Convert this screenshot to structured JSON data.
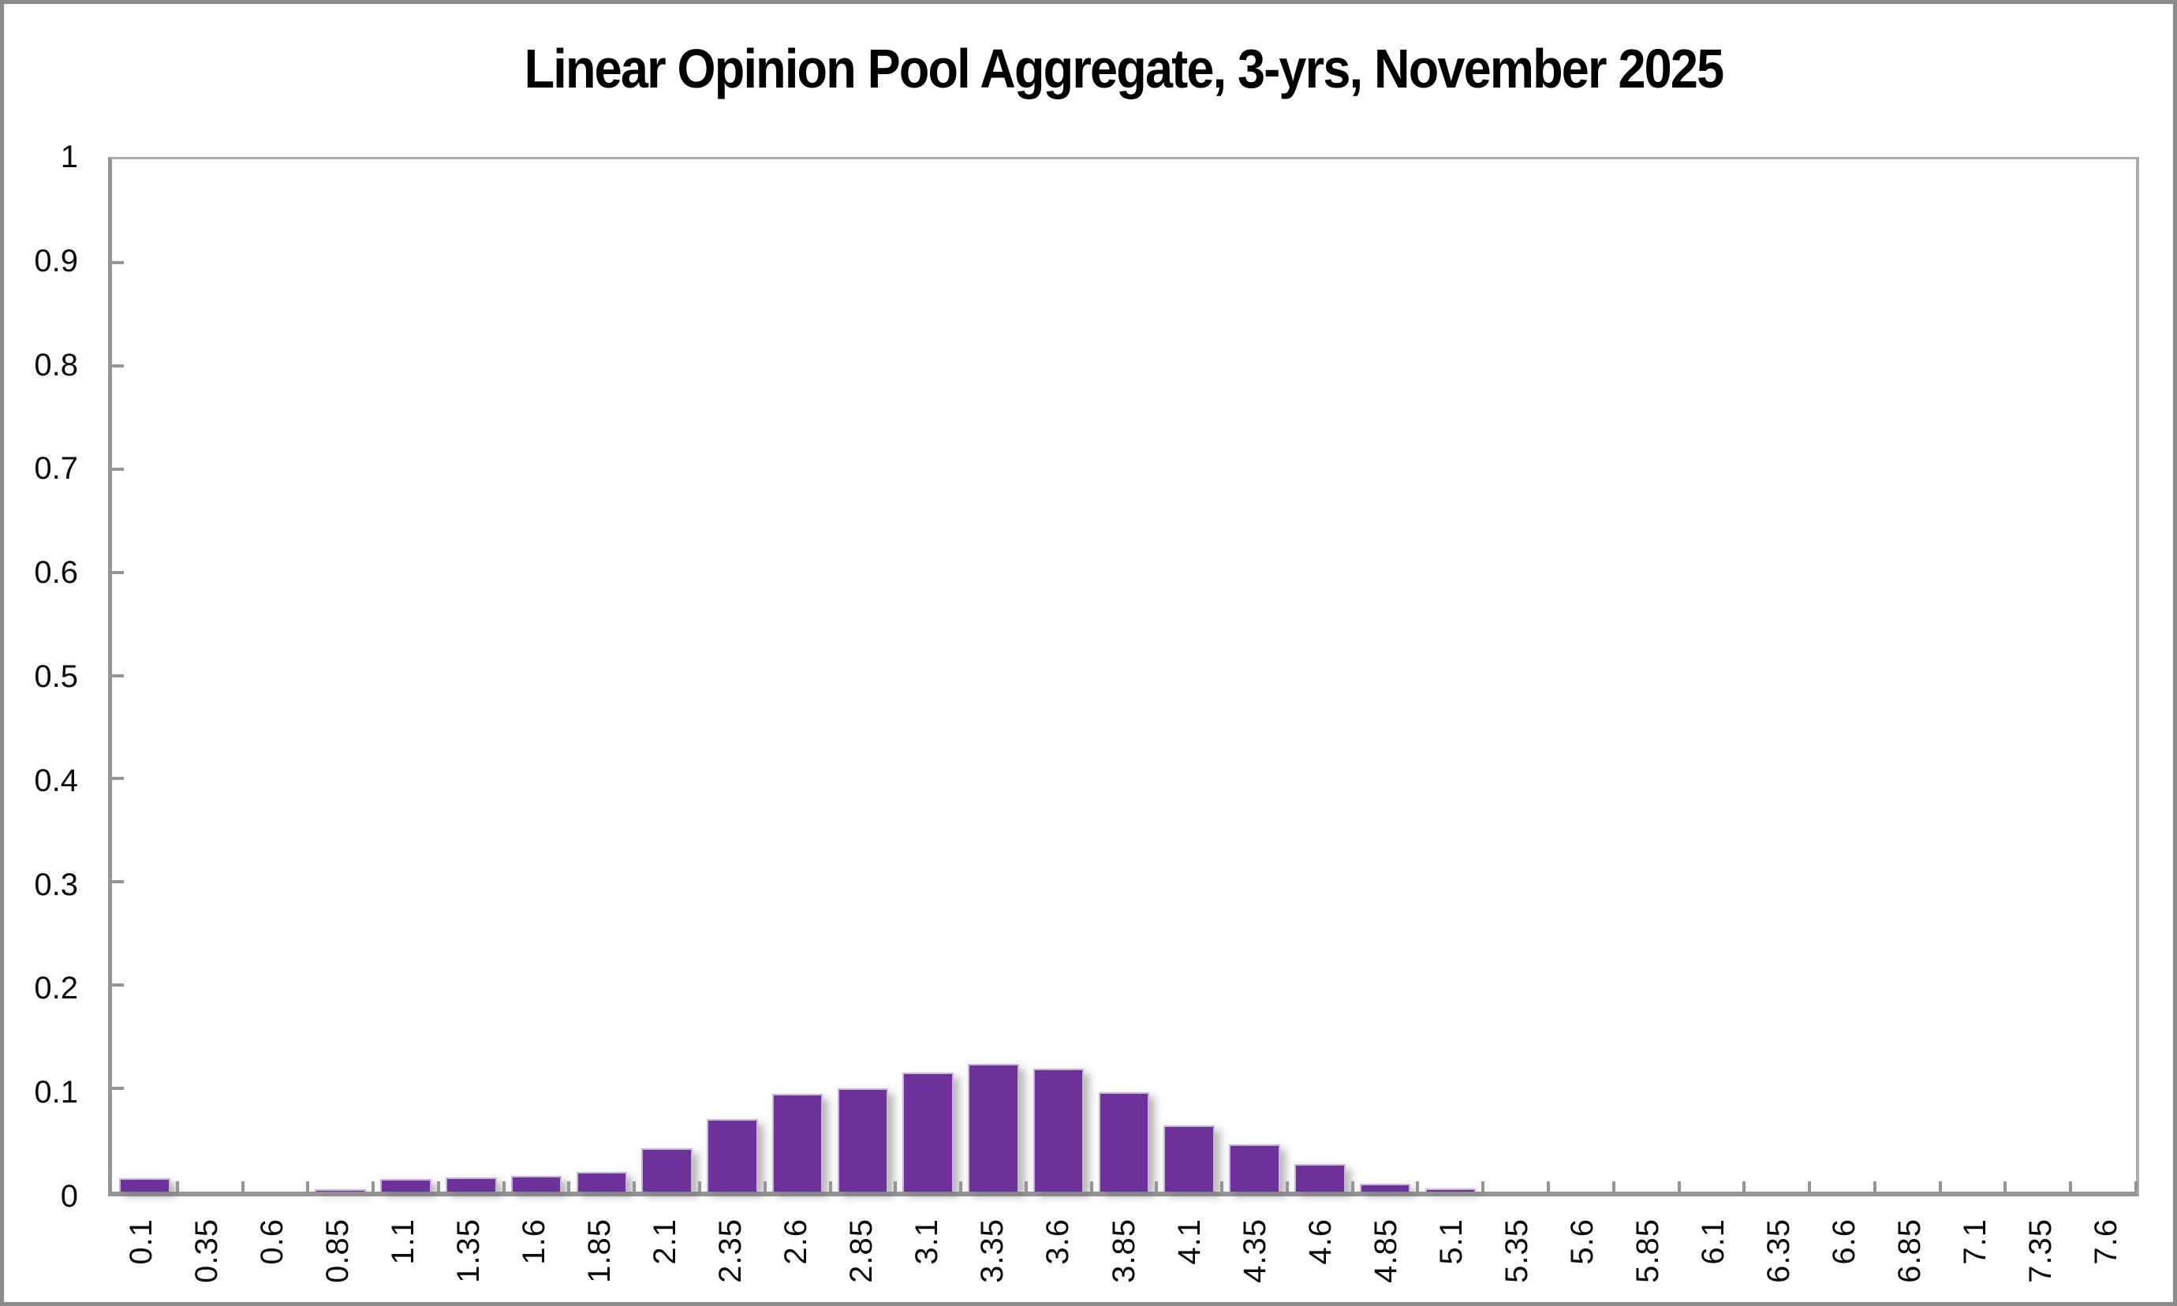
{
  "chart_data": {
    "type": "bar",
    "title": "Linear Opinion Pool Aggregate, 3-yrs, November 2025",
    "categories": [
      "0.1",
      "0.35",
      "0.6",
      "0.85",
      "1.1",
      "1.35",
      "1.6",
      "1.85",
      "2.1",
      "2.35",
      "2.6",
      "2.85",
      "3.1",
      "3.35",
      "3.6",
      "3.85",
      "4.1",
      "4.35",
      "4.6",
      "4.85",
      "5.1",
      "5.35",
      "5.6",
      "5.85",
      "6.1",
      "6.35",
      "6.6",
      "6.85",
      "7.1",
      "7.35",
      "7.6"
    ],
    "values": [
      0.013,
      0,
      0,
      0.002,
      0.012,
      0.014,
      0.015,
      0.019,
      0.042,
      0.07,
      0.095,
      0.1,
      0.115,
      0.124,
      0.119,
      0.096,
      0.064,
      0.046,
      0.027,
      0.008,
      0.003,
      0,
      0,
      0,
      0,
      0,
      0,
      0,
      0,
      0,
      0
    ],
    "xlabel": "",
    "ylabel": "",
    "ylim": [
      0,
      1
    ],
    "ytick_values": [
      0,
      0.1,
      0.2,
      0.3,
      0.4,
      0.5,
      0.6,
      0.7,
      0.8,
      0.9,
      1
    ],
    "ytick_labels": [
      "0",
      "0.1",
      "0.2",
      "0.3",
      "0.4",
      "0.5",
      "0.6",
      "0.7",
      "0.8",
      "0.9",
      "1"
    ],
    "x_tick_label_rotation": 90,
    "grid": "off",
    "legend": "none",
    "bar_color": "#6E3199",
    "bar_edge_color": "#C4B7D8",
    "axis_color": "#959595",
    "frame_color": "#ACACAC",
    "text_color": "#0b0b0b",
    "outer_border_color": "#8A8A8A",
    "background_color": "#FFFFFF"
  }
}
